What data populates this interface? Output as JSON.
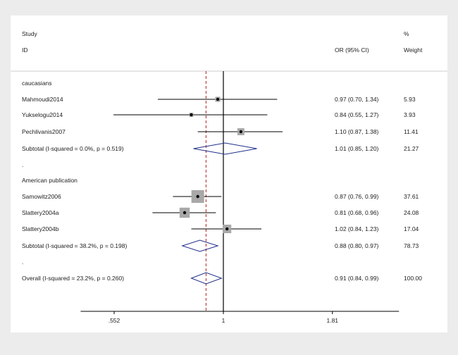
{
  "chart_data": {
    "type": "forest",
    "scale": "log",
    "xticks": [
      0.552,
      1,
      1.81
    ],
    "xtick_labels": [
      ".552",
      "1",
      "1.81"
    ],
    "xlim": [
      0.46,
      2.6
    ],
    "null_value": 1,
    "overall_estimate": 0.91,
    "header": {
      "study_line1": "Study",
      "study_line2": "ID",
      "or_label": "OR (95% CI)",
      "weight_line1": "%",
      "weight_line2": "Weight"
    },
    "rows": [
      {
        "kind": "group",
        "label": "caucasians"
      },
      {
        "kind": "study",
        "label": "Mahmoudi2014",
        "or": 0.97,
        "lo": 0.7,
        "hi": 1.34,
        "ci_text": "0.97 (0.70, 1.34)",
        "weight": "5.93"
      },
      {
        "kind": "study",
        "label": "Yukselogu2014",
        "or": 0.84,
        "lo": 0.55,
        "hi": 1.27,
        "ci_text": "0.84 (0.55, 1.27)",
        "weight": "3.93"
      },
      {
        "kind": "study",
        "label": "Pechlivanis2007",
        "or": 1.1,
        "lo": 0.87,
        "hi": 1.38,
        "ci_text": "1.10 (0.87, 1.38)",
        "weight": "11.41"
      },
      {
        "kind": "subtotal",
        "label": "Subtotal  (I-squared = 0.0%, p = 0.519)",
        "or": 1.01,
        "lo": 0.85,
        "hi": 1.2,
        "ci_text": "1.01 (0.85, 1.20)",
        "weight": "21.27"
      },
      {
        "kind": "spacer",
        "label": "."
      },
      {
        "kind": "group",
        "label": "American publication"
      },
      {
        "kind": "study",
        "label": "Samowitz2006",
        "or": 0.87,
        "lo": 0.76,
        "hi": 0.99,
        "ci_text": "0.87 (0.76, 0.99)",
        "weight": "37.61"
      },
      {
        "kind": "study",
        "label": "Slattery2004a",
        "or": 0.81,
        "lo": 0.68,
        "hi": 0.96,
        "ci_text": "0.81 (0.68, 0.96)",
        "weight": "24.08"
      },
      {
        "kind": "study",
        "label": "Slattery2004b",
        "or": 1.02,
        "lo": 0.84,
        "hi": 1.23,
        "ci_text": "1.02 (0.84, 1.23)",
        "weight": "17.04"
      },
      {
        "kind": "subtotal",
        "label": "Subtotal  (I-squared = 38.2%, p = 0.198)",
        "or": 0.88,
        "lo": 0.8,
        "hi": 0.97,
        "ci_text": "0.88 (0.80, 0.97)",
        "weight": "78.73"
      },
      {
        "kind": "spacer",
        "label": "."
      },
      {
        "kind": "overall",
        "label": "Overall  (I-squared = 23.2%, p = 0.260)",
        "or": 0.91,
        "lo": 0.84,
        "hi": 0.99,
        "ci_text": "0.91 (0.84, 0.99)",
        "weight": "100.00"
      }
    ],
    "colors": {
      "background": "#ececec",
      "panel": "#ffffff",
      "line": "#000000",
      "box": "#a8a8a8",
      "diamond": "#1f2f8a",
      "reference": "#b22222"
    }
  }
}
